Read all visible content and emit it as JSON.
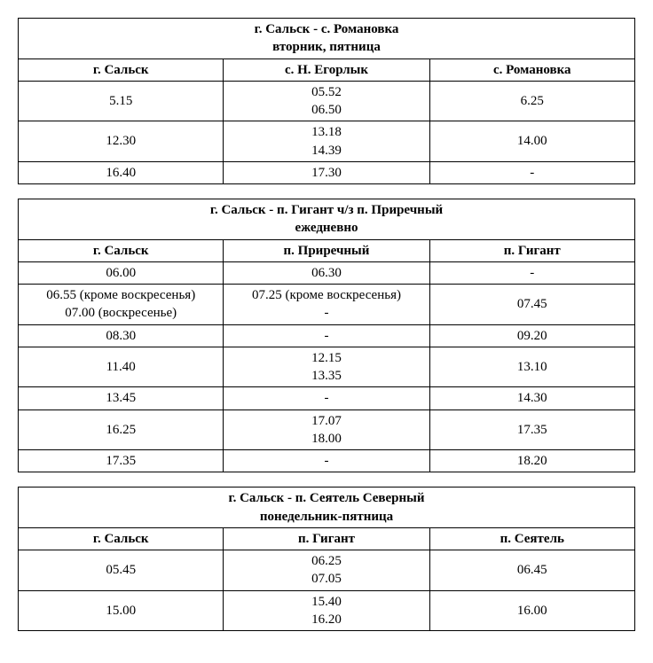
{
  "tables": [
    {
      "title_line1": "г. Сальск - с. Романовка",
      "title_line2": "вторник, пятница",
      "headers": [
        "г. Сальск",
        "с. Н. Егорлык",
        "с. Романовка"
      ],
      "rows": [
        {
          "c0": [
            "5.15"
          ],
          "c1": [
            "05.52",
            "06.50"
          ],
          "c2": [
            "6.25"
          ]
        },
        {
          "c0": [
            "12.30"
          ],
          "c1": [
            "13.18",
            "14.39"
          ],
          "c2": [
            "14.00"
          ]
        },
        {
          "c0": [
            "16.40"
          ],
          "c1": [
            "17.30"
          ],
          "c2": [
            "-"
          ]
        }
      ]
    },
    {
      "title_line1": "г. Сальск - п. Гигант ч/з  п. Приречный",
      "title_line2": "ежедневно",
      "headers": [
        "г. Сальск",
        "п. Приречный",
        "п. Гигант"
      ],
      "rows": [
        {
          "c0": [
            "06.00"
          ],
          "c1": [
            "06.30"
          ],
          "c2": [
            "-"
          ]
        },
        {
          "c0": [
            "06.55 (кроме воскресенья)",
            "07.00 (воскресенье)"
          ],
          "c1": [
            "07.25 (кроме воскресенья)",
            "-"
          ],
          "c2": [
            "07.45"
          ]
        },
        {
          "c0": [
            "08.30"
          ],
          "c1": [
            "-"
          ],
          "c2": [
            "09.20"
          ]
        },
        {
          "c0": [
            "11.40"
          ],
          "c1": [
            "12.15",
            "13.35"
          ],
          "c2": [
            "13.10"
          ]
        },
        {
          "c0": [
            "13.45"
          ],
          "c1": [
            "-"
          ],
          "c2": [
            "14.30"
          ]
        },
        {
          "c0": [
            "16.25"
          ],
          "c1": [
            "17.07",
            "18.00"
          ],
          "c2": [
            "17.35"
          ]
        },
        {
          "c0": [
            "17.35"
          ],
          "c1": [
            "-"
          ],
          "c2": [
            "18.20"
          ]
        }
      ]
    },
    {
      "title_line1": "г. Сальск  - п. Сеятель Северный",
      "title_line2": "понедельник-пятница",
      "headers": [
        "г. Сальск",
        "п. Гигант",
        "п. Сеятель"
      ],
      "rows": [
        {
          "c0": [
            "05.45"
          ],
          "c1": [
            "06.25",
            "07.05"
          ],
          "c2": [
            "06.45"
          ]
        },
        {
          "c0": [
            "15.00"
          ],
          "c1": [
            "15.40",
            "16.20"
          ],
          "c2": [
            "16.00"
          ]
        }
      ]
    }
  ],
  "style": {
    "font_family": "Times New Roman",
    "font_size_pt": 12,
    "border_color": "#000000",
    "background_color": "#ffffff",
    "text_color": "#000000",
    "col_widths_pct": [
      33.3,
      33.4,
      33.3
    ]
  }
}
